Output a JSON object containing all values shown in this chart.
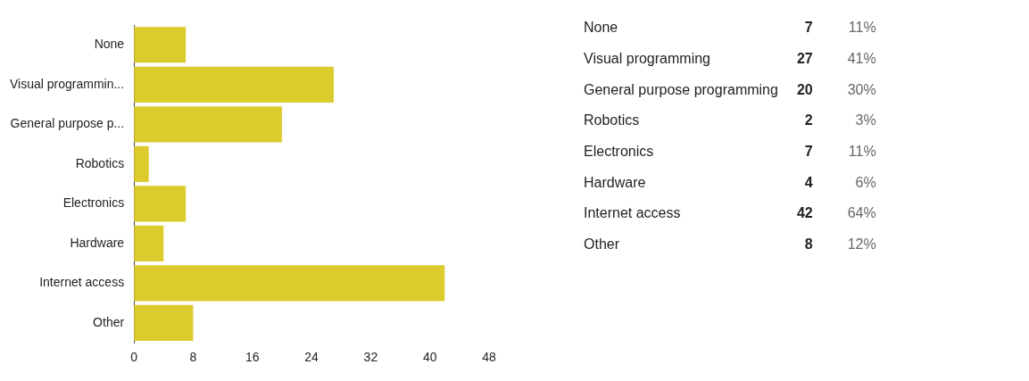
{
  "chart_data": [
    {
      "type": "bar",
      "orientation": "horizontal",
      "categories": [
        "None",
        "Visual programmin...",
        "General purpose p...",
        "Robotics",
        "Electronics",
        "Hardware",
        "Internet access",
        "Other"
      ],
      "values": [
        7,
        27,
        20,
        2,
        7,
        4,
        42,
        8
      ],
      "color": "#dccb2c",
      "xlim": [
        0,
        48
      ],
      "xticks": [
        0,
        8,
        16,
        24,
        32,
        40,
        48
      ],
      "grid": false,
      "legend": false
    },
    {
      "type": "other",
      "categories": [
        "None",
        "Visual programming",
        "General purpose programming",
        "Robotics",
        "Electronics",
        "Hardware",
        "Internet access",
        "Other"
      ],
      "data_labels": true,
      "values": [
        7,
        27,
        20,
        2,
        7,
        4,
        42,
        8
      ],
      "annotations": [
        "11%",
        "41%",
        "30%",
        "3%",
        "11%",
        "6%",
        "64%",
        "12%"
      ]
    }
  ]
}
